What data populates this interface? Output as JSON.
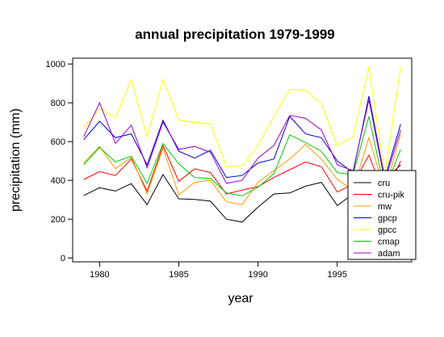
{
  "chart_data": {
    "type": "line",
    "title": "annual precipitation 1979-1999",
    "xlabel": "year",
    "ylabel": "precipitation (mm)",
    "xlim": [
      1978.3,
      1999.7
    ],
    "ylim": [
      -20,
      1030
    ],
    "xticks": [
      1980,
      1985,
      1990,
      1995
    ],
    "yticks": [
      0,
      200,
      400,
      600,
      800,
      1000
    ],
    "grid": false,
    "legend_position": "bottom-right",
    "x": [
      1979,
      1980,
      1981,
      1982,
      1983,
      1984,
      1985,
      1986,
      1987,
      1988,
      1989,
      1990,
      1991,
      1992,
      1993,
      1994,
      1995,
      1996,
      1997,
      1998,
      1999
    ],
    "series": [
      {
        "name": "cru",
        "color": "#000000",
        "values": [
          322,
          362,
          345,
          383,
          275,
          430,
          305,
          302,
          293,
          200,
          185,
          262,
          330,
          335,
          370,
          390,
          270,
          330,
          355,
          400,
          480
        ]
      },
      {
        "name": "cru-pik",
        "color": "#ff0000",
        "values": [
          405,
          445,
          425,
          510,
          345,
          580,
          395,
          460,
          440,
          330,
          350,
          368,
          415,
          455,
          495,
          470,
          340,
          380,
          530,
          320,
          500
        ]
      },
      {
        "name": "mw",
        "color": "#ff9900",
        "values": [
          490,
          575,
          460,
          520,
          330,
          565,
          325,
          390,
          400,
          290,
          275,
          390,
          450,
          510,
          585,
          510,
          405,
          350,
          620,
          345,
          640
        ]
      },
      {
        "name": "gpcp",
        "color": "#0000cc",
        "values": [
          610,
          705,
          620,
          640,
          480,
          710,
          550,
          515,
          555,
          415,
          425,
          490,
          510,
          730,
          640,
          620,
          500,
          440,
          835,
          410,
          690
        ]
      },
      {
        "name": "gpcc",
        "color": "#ffff00",
        "values": [
          670,
          770,
          725,
          920,
          625,
          920,
          710,
          700,
          690,
          470,
          475,
          580,
          730,
          870,
          865,
          795,
          580,
          625,
          985,
          430,
          985
        ]
      },
      {
        "name": "cmap",
        "color": "#00cc00",
        "values": [
          480,
          570,
          495,
          525,
          385,
          590,
          485,
          415,
          410,
          335,
          320,
          365,
          435,
          635,
          595,
          550,
          440,
          430,
          730,
          350,
          560
        ]
      },
      {
        "name": "adam",
        "color": "#9900cc",
        "values": [
          625,
          800,
          590,
          685,
          465,
          700,
          560,
          575,
          545,
          385,
          400,
          515,
          580,
          735,
          720,
          660,
          480,
          450,
          815,
          395,
          660
        ]
      }
    ]
  }
}
